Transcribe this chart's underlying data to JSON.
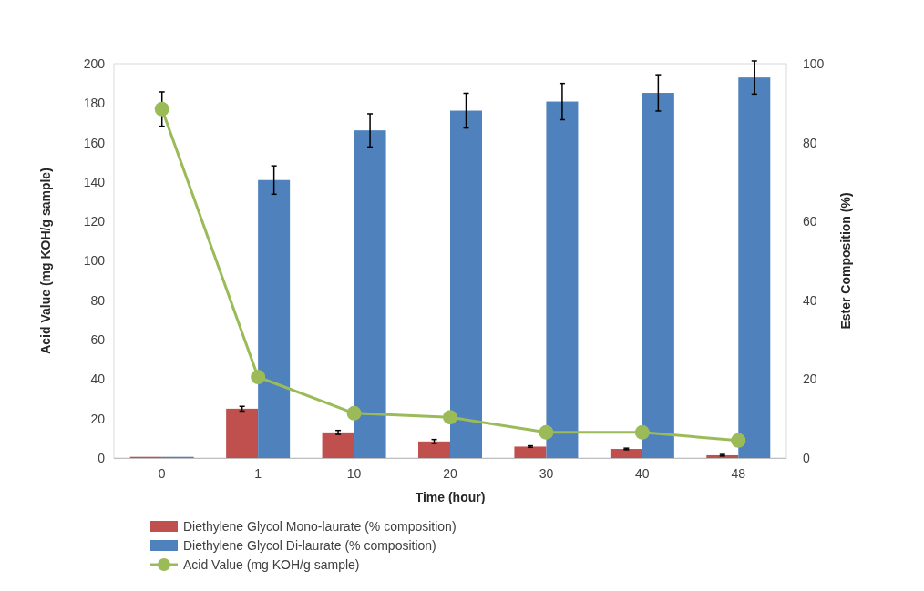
{
  "chart_data": {
    "type": "bar",
    "categories": [
      "0",
      "1",
      "10",
      "20",
      "30",
      "40",
      "48"
    ],
    "xlabel": "Time (hour)",
    "ylabel": "Acid Value (mg KOH/g sample)",
    "y2label": "Ester Composition (%)",
    "ylim": [
      0,
      200
    ],
    "yticks": [
      0,
      20,
      40,
      60,
      80,
      100,
      120,
      140,
      160,
      180,
      200
    ],
    "y2lim": [
      0,
      100
    ],
    "y2ticks": [
      0,
      20,
      40,
      60,
      80,
      100
    ],
    "legend": "bottom",
    "marker": "circle",
    "series": [
      {
        "name": "Diethylene Glycol Mono-laurate (% composition)",
        "axis": "y2",
        "color": "#c0504d",
        "values": [
          0.3,
          12.5,
          6.5,
          4.2,
          2.9,
          2.3,
          0.7
        ],
        "errors": [
          null,
          0.6,
          0.5,
          0.5,
          0.2,
          0.2,
          0.2
        ]
      },
      {
        "name": "Diethylene Glycol Di-laurate (% composition)",
        "axis": "y2",
        "color": "#4f81bd",
        "values": [
          0.3,
          70.5,
          83.1,
          88.1,
          90.4,
          92.6,
          96.5
        ],
        "errors": [
          null,
          3.6,
          4.2,
          4.4,
          4.6,
          4.6,
          4.2
        ]
      },
      {
        "name": "Acid Value (mg KOH/g sample)",
        "type": "line",
        "axis": "y",
        "color": "#9bbb59",
        "values": [
          177,
          41.1,
          22.7,
          20.7,
          13.0,
          13.0,
          8.9
        ],
        "errors": [
          8.7,
          null,
          null,
          null,
          null,
          null,
          null
        ]
      }
    ]
  }
}
